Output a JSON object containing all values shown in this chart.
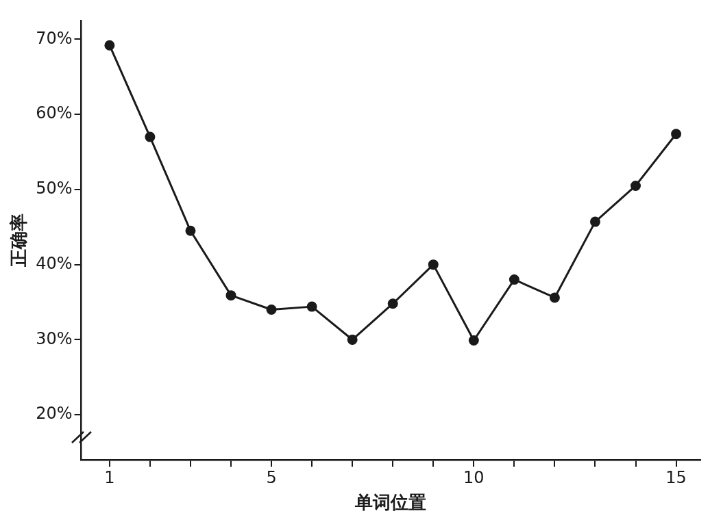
{
  "chart_data": {
    "type": "line",
    "xlabel": "单词位置",
    "ylabel": "正确率",
    "x": [
      1,
      2,
      3,
      4,
      5,
      6,
      7,
      8,
      9,
      10,
      11,
      12,
      13,
      14,
      15
    ],
    "series": [
      {
        "color": "#1a1a1a",
        "values": [
          69.2,
          57.0,
          44.5,
          35.9,
          34.0,
          34.4,
          30.0,
          34.8,
          40.0,
          29.9,
          38.0,
          35.6,
          45.7,
          50.5,
          57.4
        ]
      }
    ],
    "xlim": [
      0.3,
      15.6
    ],
    "xticks": [
      1,
      {
        "value": 2,
        "label": null
      },
      {
        "value": 3,
        "label": null
      },
      {
        "value": 4,
        "label": null
      },
      5,
      {
        "value": 6,
        "label": null
      },
      {
        "value": 7,
        "label": null
      },
      {
        "value": 8,
        "label": null
      },
      {
        "value": 9,
        "label": null
      },
      10,
      {
        "value": 11,
        "label": null
      },
      {
        "value": 12,
        "label": null
      },
      {
        "value": 13,
        "label": null
      },
      {
        "value": 14,
        "label": null
      },
      15
    ],
    "ylim": [
      14,
      72.5
    ],
    "yticks": [
      {
        "value": 20,
        "label": "20%"
      },
      {
        "value": 30,
        "label": "30%"
      },
      {
        "value": 40,
        "label": "40%"
      },
      {
        "value": 50,
        "label": "50%"
      },
      {
        "value": 60,
        "label": "60%"
      },
      {
        "value": 70,
        "label": "70%"
      }
    ],
    "grid": false,
    "legend": false,
    "marker": "circle",
    "line_style": "solid"
  }
}
